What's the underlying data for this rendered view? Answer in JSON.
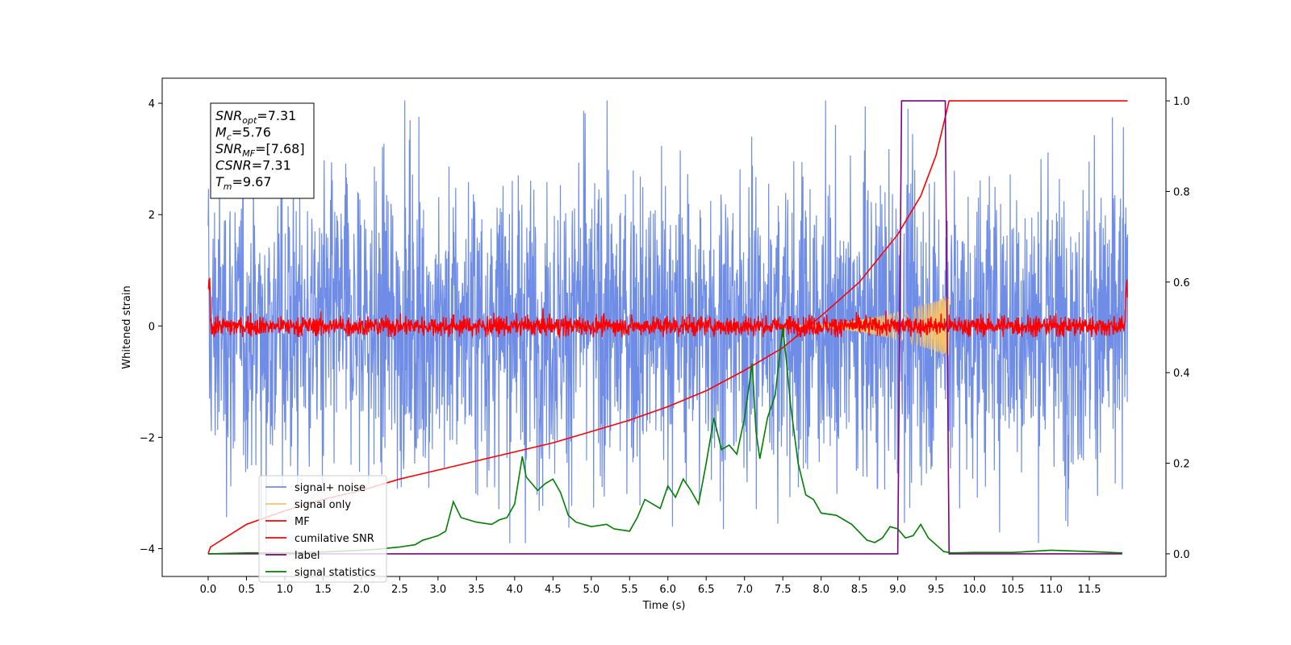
{
  "chart_data": {
    "type": "line",
    "title": "",
    "xlabel": "Time (s)",
    "ylabel": "Whitened strain",
    "y2label": "",
    "xlim": [
      -0.6,
      12.5
    ],
    "ylim": [
      -4.5,
      4.45
    ],
    "y2lim": [
      -0.05,
      1.05
    ],
    "xticks": [
      0.0,
      0.5,
      1.0,
      1.5,
      2.0,
      2.5,
      3.0,
      3.5,
      4.0,
      4.5,
      5.0,
      5.5,
      6.0,
      6.5,
      7.0,
      7.5,
      8.0,
      8.5,
      9.0,
      9.5,
      10.0,
      10.5,
      11.0,
      11.5
    ],
    "xtick_labels": [
      "0.0",
      "0.5",
      "1.0",
      "1.5",
      "2.0",
      "2.5",
      "3.0",
      "3.5",
      "4.0",
      "4.5",
      "5.0",
      "5.5",
      "6.0",
      "6.5",
      "7.0",
      "7.5",
      "8.0",
      "8.5",
      "9.0",
      "9.5",
      "10.0",
      "10.5",
      "11.0",
      "11.5"
    ],
    "yticks": [
      -4,
      -2,
      0,
      2,
      4
    ],
    "ytick_labels": [
      "−4",
      "−2",
      "0",
      "2",
      "4"
    ],
    "y2ticks": [
      0.0,
      0.2,
      0.4,
      0.6,
      0.8,
      1.0
    ],
    "y2tick_labels": [
      "0.0",
      "0.2",
      "0.4",
      "0.6",
      "0.8",
      "1.0"
    ],
    "grid": false,
    "legend_position": "lower-left",
    "series": [
      {
        "name": "signal+ noise",
        "color": "#6f8de6",
        "axis": "left",
        "kind": "noise",
        "duration": 12.0,
        "amplitude_range": [
          -3.9,
          4.05
        ]
      },
      {
        "name": "signal only",
        "color": "#f6c26a",
        "axis": "left",
        "kind": "chirp",
        "t_start": 7.4,
        "t_end": 9.67,
        "peak_amplitude": 0.55
      },
      {
        "name": "MF",
        "color": "#ff0000",
        "axis": "left",
        "kind": "noise",
        "duration": 12.0,
        "amplitude_range": [
          -0.2,
          0.45
        ]
      },
      {
        "name": "cumilative SNR",
        "color": "#ff0000",
        "axis": "right",
        "x": [
          0.0,
          0.03,
          0.5,
          1.0,
          1.5,
          2.0,
          2.5,
          3.0,
          3.5,
          4.0,
          4.5,
          5.0,
          5.5,
          6.0,
          6.5,
          7.0,
          7.5,
          8.0,
          8.5,
          9.0,
          9.3,
          9.5,
          9.6,
          9.67,
          12.0
        ],
        "y": [
          0.0,
          0.015,
          0.065,
          0.095,
          0.12,
          0.14,
          0.165,
          0.185,
          0.205,
          0.225,
          0.245,
          0.27,
          0.295,
          0.325,
          0.36,
          0.405,
          0.455,
          0.525,
          0.6,
          0.705,
          0.79,
          0.88,
          0.95,
          1.0,
          1.0
        ]
      },
      {
        "name": "label",
        "color": "#800080",
        "axis": "right",
        "x": [
          0.0,
          9.0,
          9.05,
          9.62,
          9.67,
          11.93
        ],
        "y": [
          0.0,
          0.0,
          1.0,
          1.0,
          0.0,
          0.0
        ]
      },
      {
        "name": "signal statistics",
        "color": "#008000",
        "axis": "right",
        "x": [
          0.0,
          0.5,
          1.0,
          1.5,
          2.0,
          2.2,
          2.5,
          2.7,
          2.8,
          2.9,
          3.0,
          3.1,
          3.2,
          3.3,
          3.5,
          3.7,
          3.8,
          3.9,
          4.0,
          4.1,
          4.15,
          4.2,
          4.3,
          4.4,
          4.5,
          4.6,
          4.7,
          4.8,
          5.0,
          5.2,
          5.3,
          5.5,
          5.6,
          5.7,
          5.8,
          5.9,
          6.0,
          6.1,
          6.2,
          6.3,
          6.4,
          6.5,
          6.6,
          6.7,
          6.8,
          6.9,
          7.0,
          7.1,
          7.15,
          7.2,
          7.3,
          7.4,
          7.5,
          7.55,
          7.6,
          7.7,
          7.8,
          7.9,
          8.0,
          8.2,
          8.4,
          8.6,
          8.7,
          8.8,
          8.9,
          9.0,
          9.1,
          9.2,
          9.3,
          9.4,
          9.5,
          9.6,
          9.7,
          10.0,
          10.5,
          11.0,
          11.5,
          11.93
        ],
        "y": [
          0.0,
          0.002,
          0.002,
          0.004,
          0.008,
          0.01,
          0.015,
          0.02,
          0.03,
          0.035,
          0.04,
          0.05,
          0.115,
          0.08,
          0.07,
          0.065,
          0.075,
          0.08,
          0.11,
          0.215,
          0.17,
          0.16,
          0.14,
          0.155,
          0.165,
          0.135,
          0.085,
          0.07,
          0.06,
          0.065,
          0.055,
          0.05,
          0.08,
          0.12,
          0.11,
          0.1,
          0.15,
          0.125,
          0.165,
          0.14,
          0.11,
          0.2,
          0.3,
          0.23,
          0.24,
          0.22,
          0.3,
          0.42,
          0.27,
          0.21,
          0.3,
          0.35,
          0.5,
          0.42,
          0.33,
          0.2,
          0.13,
          0.12,
          0.09,
          0.085,
          0.065,
          0.03,
          0.025,
          0.035,
          0.06,
          0.055,
          0.035,
          0.04,
          0.065,
          0.035,
          0.02,
          0.005,
          0.002,
          0.003,
          0.003,
          0.008,
          0.005,
          0.002
        ]
      }
    ],
    "annotations": [
      {
        "main": "SNR",
        "sub": "opt",
        "rest": "=7.31"
      },
      {
        "main": "M",
        "sub": "c",
        "rest": "=5.76"
      },
      {
        "main": "SNR",
        "sub": "MF",
        "rest": "=[7.68]"
      },
      {
        "main": "CSNR",
        "sub": "",
        "rest": "=7.31"
      },
      {
        "main": "T",
        "sub": "m",
        "rest": "=9.67"
      }
    ]
  }
}
